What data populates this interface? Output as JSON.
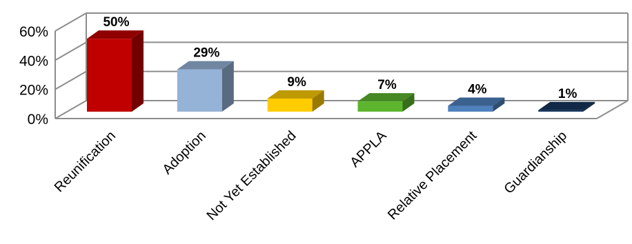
{
  "chart_data": {
    "type": "bar",
    "categories": [
      "Reunification",
      "Adoption",
      "Not Yet Established",
      "APPLA",
      "Relative Placement",
      "Guardianship"
    ],
    "values": [
      50,
      29,
      9,
      7,
      4,
      1
    ],
    "data_labels": [
      "50%",
      "29%",
      "9%",
      "7%",
      "4%",
      "1%"
    ],
    "colors": [
      "#C00000",
      "#95B3D7",
      "#FFCC00",
      "#5DB52E",
      "#4F81BD",
      "#17375E"
    ],
    "yticks": [
      "0%",
      "20%",
      "40%",
      "60%"
    ],
    "ylim": [
      0,
      60
    ],
    "three_d": true,
    "grid": true,
    "legend": "none"
  }
}
